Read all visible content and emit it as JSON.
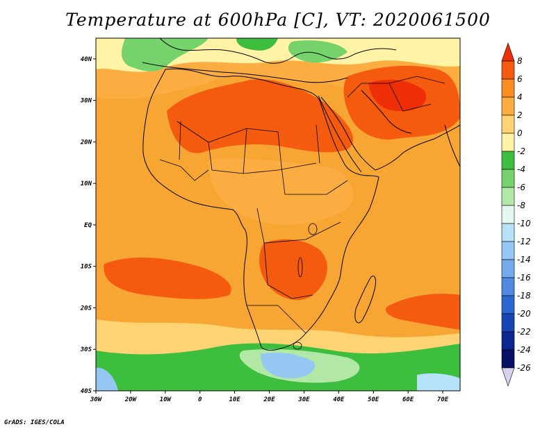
{
  "title": "Temperature at 600hPa [C], VT: 2020061500",
  "credit": "GrADS: IGES/COLA",
  "map": {
    "projection": "latlon",
    "lon_range": [
      -30,
      75
    ],
    "lat_range": [
      -40,
      45
    ],
    "lon_ticks": [
      {
        "value": -30,
        "label": "30W"
      },
      {
        "value": -20,
        "label": "20W"
      },
      {
        "value": -10,
        "label": "10W"
      },
      {
        "value": 0,
        "label": "0"
      },
      {
        "value": 10,
        "label": "10E"
      },
      {
        "value": 20,
        "label": "20E"
      },
      {
        "value": 30,
        "label": "30E"
      },
      {
        "value": 40,
        "label": "40E"
      },
      {
        "value": 50,
        "label": "50E"
      },
      {
        "value": 60,
        "label": "60E"
      },
      {
        "value": 70,
        "label": "70E"
      }
    ],
    "lat_ticks": [
      {
        "value": 40,
        "label": "40N"
      },
      {
        "value": 30,
        "label": "30N"
      },
      {
        "value": 20,
        "label": "20N"
      },
      {
        "value": 10,
        "label": "10N"
      },
      {
        "value": 0,
        "label": "EQ"
      },
      {
        "value": -10,
        "label": "10S"
      },
      {
        "value": -20,
        "label": "20S"
      },
      {
        "value": -30,
        "label": "30S"
      },
      {
        "value": -40,
        "label": "40S"
      }
    ],
    "background_color": "#f7a634"
  },
  "colorbar": {
    "levels": [
      "8",
      "6",
      "4",
      "2",
      "0",
      "-2",
      "-4",
      "-6",
      "-8",
      "-10",
      "-12",
      "-14",
      "-16",
      "-18",
      "-20",
      "-22",
      "-24",
      "-26"
    ],
    "colors": [
      "#ee2e07",
      "#f45b0f",
      "#f98d1f",
      "#fbad42",
      "#fdd373",
      "#fff3a6",
      "#3ebe3f",
      "#76d36c",
      "#b1e8a5",
      "#e4f8f0",
      "#b6e2f8",
      "#94c8f3",
      "#72aaeb",
      "#4f89e0",
      "#2c67cf",
      "#1746b4",
      "#0b2591",
      "#0a0f66",
      "#d8d0ef"
    ]
  },
  "regions": [
    {
      "name": "mediterranean-cool",
      "color": "#76d36c"
    },
    {
      "name": "sahara-warm",
      "color": "#f45b0f"
    },
    {
      "name": "arabia-warm",
      "color": "#ee2e07"
    },
    {
      "name": "southern-africa-warm",
      "color": "#f45b0f"
    },
    {
      "name": "south-atlantic-warm",
      "color": "#f45b0f"
    },
    {
      "name": "southern-ocean-cool",
      "color": "#3ebe3f"
    },
    {
      "name": "south-cold",
      "color": "#94c8f3"
    }
  ]
}
